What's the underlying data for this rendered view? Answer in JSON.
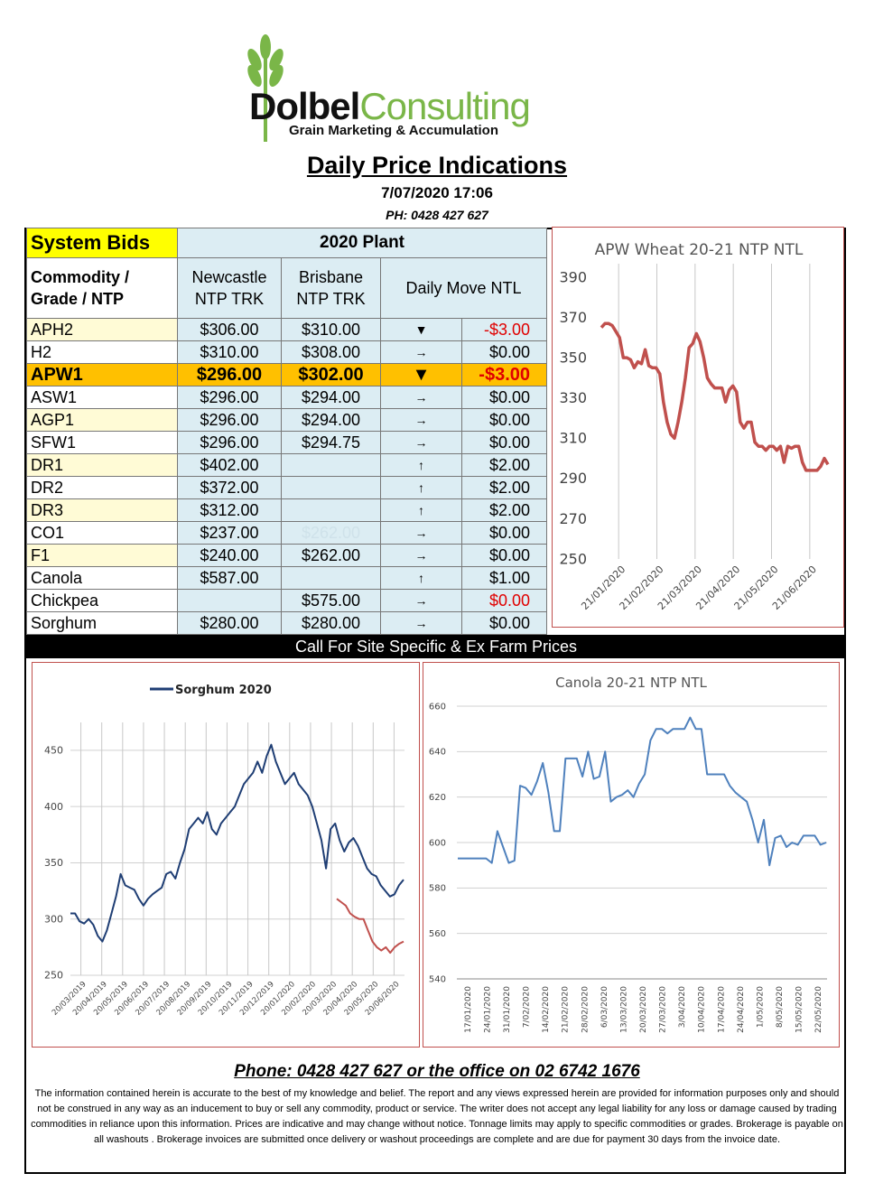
{
  "header": {
    "brand_part1": "Dolbel",
    "brand_part2": "Consulting",
    "tagline": "Grain Marketing & Accumulation",
    "title": "Daily Price Indications",
    "datetime": "7/07/2020 17:06",
    "phone": "PH: 0428 427 627"
  },
  "colors": {
    "accent_green": "#7ab648",
    "highlight": "#ffc000",
    "negative": "#e00000",
    "chart_red": "#c0504d",
    "chart_navy": "#1f3e74",
    "chart_blue": "#4f81bd"
  },
  "table": {
    "system_bids": "System Bids",
    "plant": "2020 Plant",
    "col_commodity": "Commodity / Grade / NTP",
    "col_commodity_l1": "Commodity /",
    "col_commodity_l2": "Grade / NTP",
    "col_newcastle_l1": "Newcastle",
    "col_newcastle_l2": "NTP TRK",
    "col_brisbane_l1": "Brisbane",
    "col_brisbane_l2": "NTP TRK",
    "col_move": "Daily  Move NTL",
    "rows": [
      {
        "name": "APH2",
        "newcastle": "$306.00",
        "brisbane": "$310.00",
        "arrow": "▼",
        "move": "-$3.00"
      },
      {
        "name": "H2",
        "newcastle": "$310.00",
        "brisbane": "$308.00",
        "arrow": "→",
        "move": "$0.00"
      },
      {
        "name": "APW1",
        "newcastle": "$296.00",
        "brisbane": "$302.00",
        "arrow": "▼",
        "move": "-$3.00"
      },
      {
        "name": "ASW1",
        "newcastle": "$296.00",
        "brisbane": "$294.00",
        "arrow": "→",
        "move": "$0.00"
      },
      {
        "name": "AGP1",
        "newcastle": "$296.00",
        "brisbane": "$294.00",
        "arrow": "→",
        "move": "$0.00"
      },
      {
        "name": "SFW1",
        "newcastle": "$296.00",
        "brisbane": "$294.75",
        "arrow": "→",
        "move": "$0.00"
      },
      {
        "name": "DR1",
        "newcastle": "$402.00",
        "brisbane": "",
        "arrow": "↑",
        "move": "$2.00"
      },
      {
        "name": "DR2",
        "newcastle": "$372.00",
        "brisbane": "",
        "arrow": "↑",
        "move": "$2.00"
      },
      {
        "name": "DR3",
        "newcastle": "$312.00",
        "brisbane": "",
        "arrow": "↑",
        "move": "$2.00"
      },
      {
        "name": "CO1",
        "newcastle": "$237.00",
        "brisbane": "$262.00",
        "arrow": "→",
        "move": "$0.00"
      },
      {
        "name": "F1",
        "newcastle": "$240.00",
        "brisbane": "$262.00",
        "arrow": "→",
        "move": "$0.00"
      },
      {
        "name": "Canola",
        "newcastle": "$587.00",
        "brisbane": "",
        "arrow": "↑",
        "move": "$1.00"
      },
      {
        "name": "Chickpea",
        "newcastle": "",
        "brisbane": "$575.00",
        "arrow": "→",
        "move": "$0.00"
      },
      {
        "name": "Sorghum",
        "newcastle": "$280.00",
        "brisbane": "$280.00",
        "arrow": "→",
        "move": "$0.00"
      }
    ]
  },
  "call_bar": "Call For Site Specific & Ex Farm Prices",
  "chart_data": [
    {
      "type": "line",
      "title": "APW Wheat 20-21 NTP NTL",
      "ylim": [
        250,
        390
      ],
      "yticks": [
        390,
        370,
        350,
        330,
        310,
        290,
        270,
        250
      ],
      "xticks": [
        "21/01/2020",
        "21/02/2020",
        "21/03/2020",
        "21/04/2020",
        "21/05/2020",
        "21/06/2020"
      ],
      "grid": "vertical",
      "series": [
        {
          "values": [
            365,
            367,
            367,
            366,
            363,
            360,
            350,
            350,
            349,
            345,
            348,
            347,
            354,
            346,
            345,
            345,
            342,
            328,
            318,
            312,
            310,
            318,
            328,
            340,
            355,
            357,
            362,
            358,
            350,
            340,
            337,
            335,
            335,
            335,
            328,
            334,
            336,
            333,
            318,
            315,
            318,
            318,
            308,
            306,
            306,
            304,
            306,
            306,
            304,
            306,
            298,
            306,
            305,
            306,
            306,
            298,
            294,
            294,
            294,
            294,
            296,
            300,
            297
          ]
        }
      ]
    },
    {
      "type": "line",
      "title": "Sorghum 2020",
      "legend": "top-left",
      "ylim": [
        250,
        470
      ],
      "yticks": [
        450,
        400,
        350,
        300,
        250
      ],
      "xticks": [
        "20/03/2019",
        "20/04/2019",
        "20/05/2019",
        "20/06/2019",
        "20/07/2019",
        "20/08/2019",
        "20/09/2019",
        "20/10/2019",
        "20/11/2019",
        "20/12/2019",
        "20/01/2020",
        "20/02/2020",
        "20/03/2020",
        "20/04/2020",
        "20/05/2020",
        "20/06/2020"
      ],
      "grid": "both",
      "series": [
        {
          "name": "Sorghum 2020",
          "values": [
            305,
            305,
            298,
            296,
            300,
            295,
            285,
            280,
            290,
            305,
            320,
            340,
            330,
            328,
            326,
            318,
            312,
            318,
            322,
            325,
            328,
            340,
            342,
            336,
            350,
            362,
            380,
            385,
            390,
            385,
            395,
            380,
            375,
            385,
            390,
            395,
            400,
            410,
            420,
            425,
            430,
            440,
            430,
            445,
            455,
            440,
            430,
            420,
            425,
            430,
            420,
            415,
            410,
            400,
            385,
            370,
            345,
            380,
            385,
            370,
            360,
            368,
            372,
            365,
            355,
            345,
            340,
            338,
            330,
            325,
            320,
            322,
            330,
            335
          ]
        },
        {
          "values": [
            318,
            315,
            312,
            305,
            302,
            300,
            300,
            290,
            280,
            275,
            272,
            275,
            270,
            275,
            278,
            280
          ]
        }
      ]
    },
    {
      "type": "line",
      "title": "Canola 20-21 NTP NTL",
      "ylim": [
        540,
        660
      ],
      "yticks": [
        660,
        640,
        620,
        600,
        580,
        560,
        540
      ],
      "xticks": [
        "17/01/2020",
        "24/01/2020",
        "31/01/2020",
        "7/02/2020",
        "14/02/2020",
        "21/02/2020",
        "28/02/2020",
        "6/03/2020",
        "13/03/2020",
        "20/03/2020",
        "27/03/2020",
        "3/04/2020",
        "10/04/2020",
        "17/04/2020",
        "24/04/2020",
        "1/05/2020",
        "8/05/2020",
        "15/05/2020",
        "22/05/2020"
      ],
      "grid": "horizontal",
      "series": [
        {
          "values": [
            593,
            593,
            593,
            593,
            593,
            593,
            591,
            605,
            598,
            591,
            592,
            625,
            624,
            621,
            627,
            635,
            622,
            605,
            605,
            637,
            637,
            637,
            629,
            640,
            628,
            629,
            640,
            618,
            620,
            621,
            623,
            620,
            626,
            630,
            645,
            650,
            650,
            648,
            650,
            650,
            650,
            655,
            650,
            650,
            630,
            630,
            630,
            630,
            625,
            622,
            620,
            618,
            610,
            600,
            610,
            590,
            602,
            603,
            598,
            600,
            599,
            603,
            603,
            603,
            599,
            600
          ]
        }
      ]
    }
  ],
  "footer": {
    "phone": "Phone: 0428 427 627 or the office on 02 6742 1676",
    "disclaimer": "The information contained herein is accurate to the best of my knowledge and belief.  The report and any views expressed herein are provided for information purposes only and should not be construed in any way as an inducement to buy or sell any commodity, product or service. The writer does not accept any legal liability for any loss or damage caused by trading commodities in reliance upon this information. Prices are indicative and may change without notice. Tonnage limits may apply to specific commodities or grades.  Brokerage is payable on all washouts . Brokerage invoices are submitted once delivery or washout proceedings are complete and are due for payment 30 days from the invoice date."
  }
}
